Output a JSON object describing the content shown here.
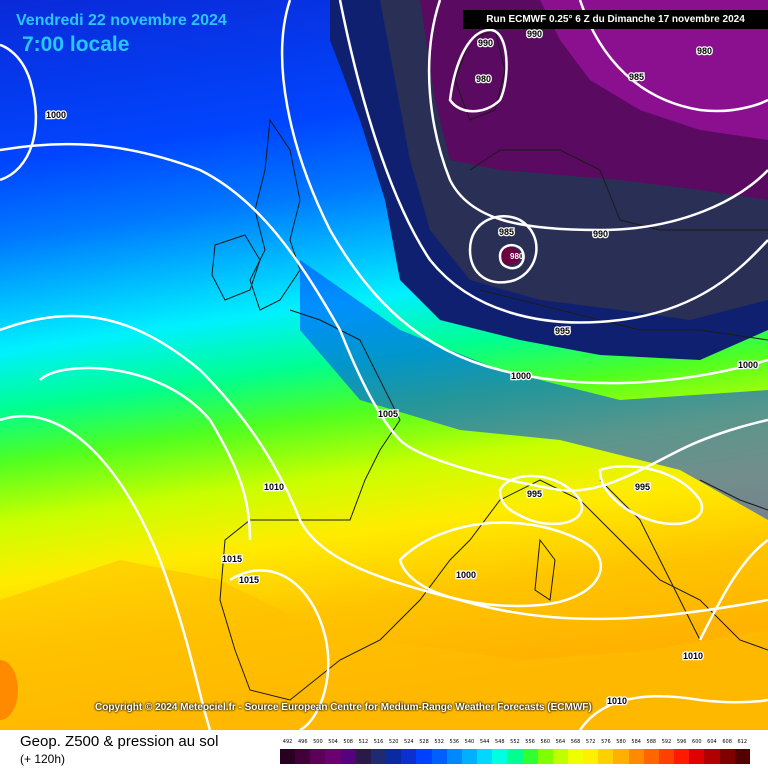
{
  "header": {
    "date": "Vendredi 22 novembre 2024",
    "time": "7:00 locale",
    "run": "Run ECMWF 0.25° 6 Z du Dimanche 17 novembre 2024"
  },
  "copyright": "Copyright © 2024 Meteociel.fr - Source European Centre for Medium-Range Weather Forecasts (ECMWF)",
  "footer": {
    "field": "Geop. Z500 & pression au sol",
    "lead": "(+ 120h)"
  },
  "pressure_labels": [
    "990",
    "990",
    "980",
    "985",
    "980",
    "985",
    "990",
    "995",
    "1000",
    "1000",
    "1000",
    "1005",
    "1010",
    "995",
    "995",
    "1015",
    "1015",
    "1000",
    "1010",
    "1010"
  ],
  "scale": {
    "values": [
      "492",
      "496",
      "500",
      "504",
      "508",
      "512",
      "516",
      "520",
      "524",
      "528",
      "532",
      "536",
      "540",
      "544",
      "548",
      "552",
      "556",
      "560",
      "564",
      "568",
      "572",
      "576",
      "580",
      "584",
      "588",
      "592",
      "596",
      "600",
      "604",
      "608",
      "612"
    ],
    "colors": [
      "#2a0020",
      "#42003a",
      "#5c0058",
      "#6b0070",
      "#560080",
      "#2a1a4a",
      "#202a70",
      "#0a2aa0",
      "#0a30d0",
      "#0040ff",
      "#0060ff",
      "#0088ff",
      "#00b0ff",
      "#00d8ff",
      "#00ffe0",
      "#00ff90",
      "#30ff30",
      "#80ff00",
      "#c0ff00",
      "#f0ff00",
      "#fff000",
      "#ffd000",
      "#ffb000",
      "#ff8a00",
      "#ff6600",
      "#ff4000",
      "#ff1a00",
      "#e00000",
      "#b00000",
      "#800000",
      "#550000"
    ]
  }
}
